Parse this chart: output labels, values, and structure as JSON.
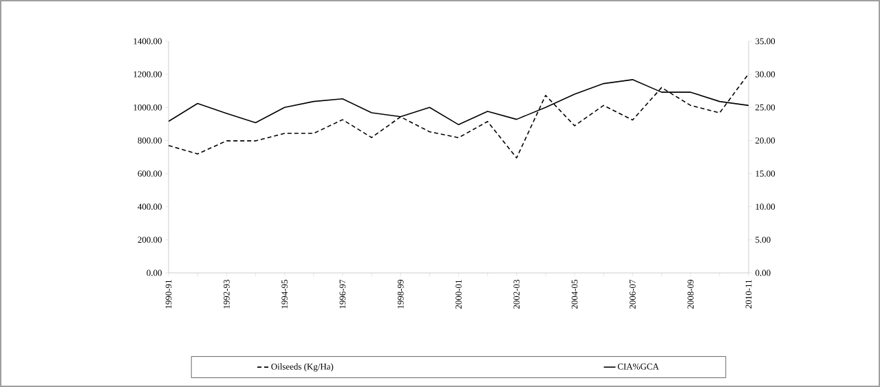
{
  "chart_data": {
    "type": "line",
    "categories": [
      "1990-91",
      null,
      "1992-93",
      null,
      "1994-95",
      null,
      "1996-97",
      null,
      "1998-99",
      null,
      "2000-01",
      null,
      "2002-03",
      null,
      "2004-05",
      null,
      "2006-07",
      null,
      "2008-09",
      null,
      "2010-11"
    ],
    "series": [
      {
        "name": "Oilseeds (Kg/Ha)",
        "color": "#000000",
        "line_style": "dashed",
        "axis": "y",
        "values": [
          770,
          719,
          798,
          798,
          843,
          843,
          926,
          818,
          943,
          853,
          817,
          915,
          695,
          1073,
          889,
          1012,
          924,
          1120,
          1012,
          967,
          1203
        ]
      },
      {
        "name": "CIA%GCA",
        "color": "#000000",
        "line_style": "solid",
        "axis": "y2",
        "values": [
          22.9,
          25.6,
          24.1,
          22.7,
          25.0,
          25.9,
          26.3,
          24.2,
          23.6,
          25.0,
          22.4,
          24.4,
          23.2,
          25.0,
          27.0,
          28.6,
          29.2,
          27.3,
          27.3,
          25.9,
          25.3
        ]
      }
    ],
    "ylim": [
      0,
      1400
    ],
    "yticks": [
      {
        "value": 0,
        "label": "0.00"
      },
      {
        "value": 200,
        "label": "200.00"
      },
      {
        "value": 400,
        "label": "400.00"
      },
      {
        "value": 600,
        "label": "600.00"
      },
      {
        "value": 800,
        "label": "800.00"
      },
      {
        "value": 1000,
        "label": "1000.00"
      },
      {
        "value": 1200,
        "label": "1200.00"
      },
      {
        "value": 1400,
        "label": "1400.00"
      }
    ],
    "y2lim": [
      0,
      35
    ],
    "y2ticks": [
      {
        "value": 0,
        "label": "0.00"
      },
      {
        "value": 5,
        "label": "5.00"
      },
      {
        "value": 10,
        "label": "10.00"
      },
      {
        "value": 15,
        "label": "15.00"
      },
      {
        "value": 20,
        "label": "20.00"
      },
      {
        "value": 25,
        "label": "25.00"
      },
      {
        "value": 30,
        "label": "30.00"
      },
      {
        "value": 35,
        "label": "35.00"
      }
    ],
    "legend": "bottom"
  }
}
